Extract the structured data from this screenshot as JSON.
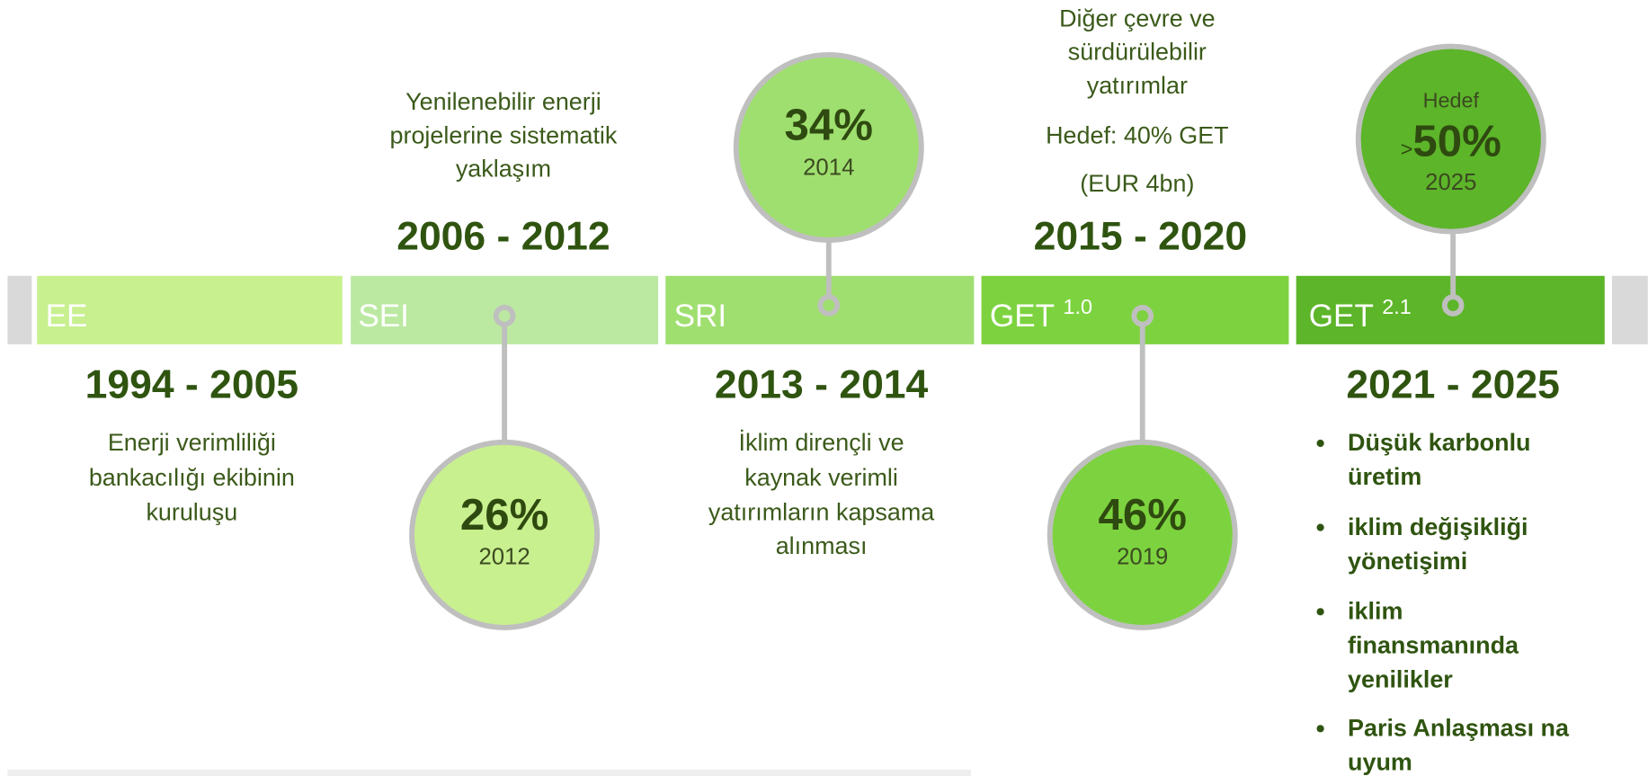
{
  "segments": [
    {
      "label": "EE"
    },
    {
      "label": "SEI"
    },
    {
      "label": "SRI"
    },
    {
      "label": "GET",
      "sup": "1.0"
    },
    {
      "label": "GET",
      "sup": "2.1"
    }
  ],
  "periods": [
    {
      "years": "1994 - 2005",
      "lines": [
        "Enerji verimliliği",
        "bankacılığı ekibinin",
        "kuruluşu"
      ]
    },
    {
      "years": "2006 - 2012",
      "lines": [
        "Yenilenebilir enerji",
        "projelerine sistematik",
        "yaklaşım"
      ]
    },
    {
      "years": "2013 - 2014",
      "lines": [
        "İklim dirençli ve",
        "kaynak verimli",
        "yatırımların kapsama",
        "alınması"
      ]
    },
    {
      "years": "2015 - 2020",
      "lines": [
        "Diğer çevre ve",
        "sürdürülebilir",
        "yatırımlar",
        "Hedef: 40% GET",
        "(EUR 4bn)"
      ]
    },
    {
      "years": "2021 - 2025",
      "bullets": [
        [
          "Düşük karbonlu",
          "üretim"
        ],
        [
          "iklim değişikliği",
          "yönetişimi"
        ],
        [
          "iklim",
          "finansmanında",
          "yenilikler"
        ],
        [
          "Paris Anlaşması na",
          "uyum"
        ]
      ]
    }
  ],
  "circles": [
    {
      "value": "26%",
      "year": "2012"
    },
    {
      "value": "34%",
      "year": "2014"
    },
    {
      "value": "46%",
      "year": "2019"
    },
    {
      "caption": "Hedef",
      "prefix": ">",
      "value": "50%",
      "year": "2025"
    }
  ]
}
